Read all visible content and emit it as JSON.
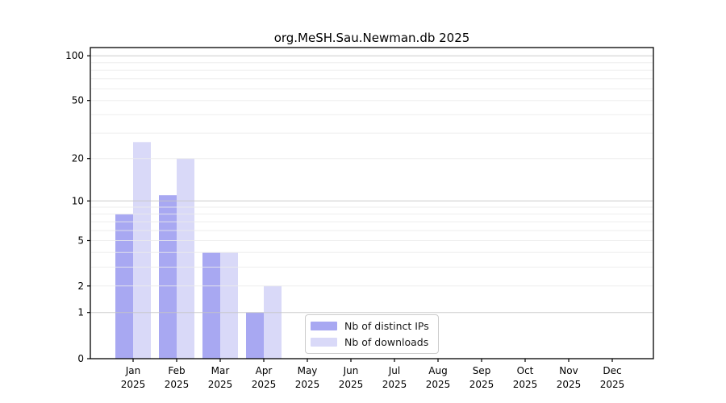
{
  "chart_data": {
    "type": "bar",
    "title": "org.MeSH.Sau.Newman.db 2025",
    "categories": [
      "Jan",
      "Feb",
      "Mar",
      "Apr",
      "May",
      "Jun",
      "Jul",
      "Aug",
      "Sep",
      "Oct",
      "Nov",
      "Dec"
    ],
    "year_label": "2025",
    "series": [
      {
        "name": "Nb of distinct IPs",
        "color": "#a8a8f2",
        "values": [
          8,
          11,
          4,
          1,
          0,
          0,
          0,
          0,
          0,
          0,
          0,
          0
        ]
      },
      {
        "name": "Nb of downloads",
        "color": "#d9d9f8",
        "values": [
          26,
          20,
          4,
          2,
          0,
          0,
          0,
          0,
          0,
          0,
          0,
          0
        ]
      }
    ],
    "y_axis": {
      "scale": "log10(1+x)",
      "major_ticks": [
        0,
        1,
        2,
        5,
        10,
        20,
        50,
        100
      ],
      "decade_gridlines": [
        1,
        10,
        100
      ],
      "minor_gridlines": [
        3,
        4,
        6,
        7,
        8,
        9,
        30,
        40,
        60,
        70,
        80,
        90
      ],
      "ylim": [
        0,
        113
      ]
    },
    "legend_position": "bottom-center",
    "grid": true,
    "colors": {
      "frame": "#000000",
      "decade_gridline": "#c6c6c6",
      "minor_gridline": "#ececec",
      "background": "#ffffff"
    }
  }
}
